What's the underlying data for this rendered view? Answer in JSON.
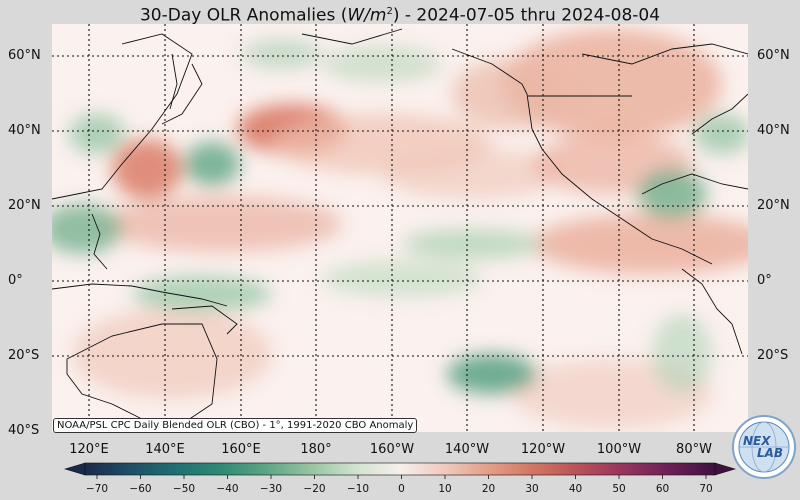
{
  "title": {
    "prefix": "30-Day OLR Anomalies (",
    "unit_base": "W/m",
    "unit_exp": "2",
    "suffix": ") - 2024-07-05 thru 2024-08-04"
  },
  "lat_labels": [
    "60°N",
    "40°N",
    "20°N",
    "0°",
    "20°S",
    "40°S"
  ],
  "lon_labels": [
    "120°E",
    "140°E",
    "160°E",
    "180°",
    "160°W",
    "140°W",
    "120°W",
    "100°W",
    "80°W"
  ],
  "credit": "NOAA/PSL CPC Daily Blended OLR (CBO) - 1°, 1991-2020 CBO Anomaly",
  "colorbar": {
    "ticks": [
      "−70",
      "−60",
      "−50",
      "−40",
      "−30",
      "−20",
      "−10",
      "0",
      "10",
      "20",
      "30",
      "40",
      "50",
      "60",
      "70"
    ],
    "colors": [
      "#1b2a4a",
      "#1f4e66",
      "#1f6f72",
      "#2e8a74",
      "#5aa585",
      "#96c3a2",
      "#cfe2cf",
      "#f7efec",
      "#f0c9bd",
      "#e39d86",
      "#d27462",
      "#b8505a",
      "#95335e",
      "#6d1f55",
      "#3f1140"
    ]
  },
  "logo": {
    "text": "NEX",
    "text2": "LAB",
    "icon": "nexlab-globe-logo"
  }
}
